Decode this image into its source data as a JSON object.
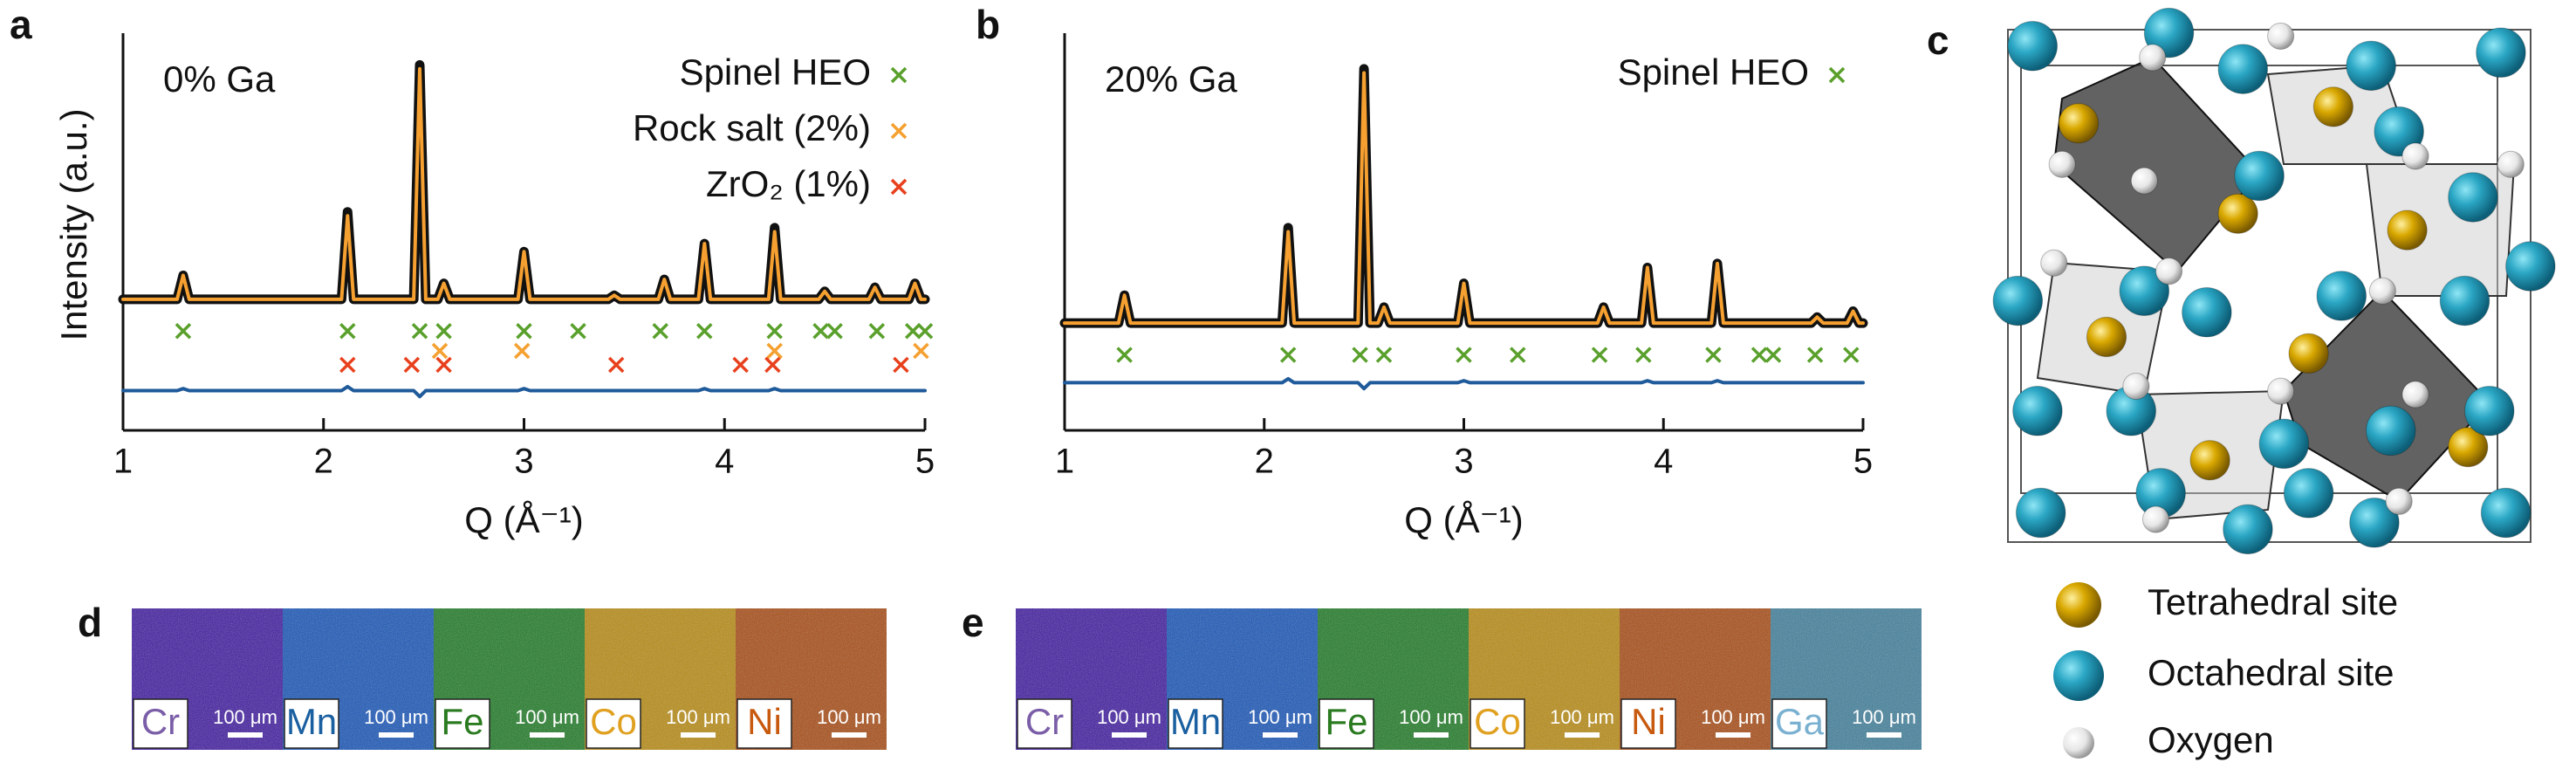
{
  "chart_data": [
    {
      "type": "line",
      "panel": "a",
      "annotation": "0% Ga",
      "xlabel": "Q (Å⁻¹)",
      "ylabel": "Intensity (a.u.)",
      "xlim": [
        1,
        5
      ],
      "xticks": [
        1,
        2,
        3,
        4,
        5
      ],
      "ylim": [
        0,
        100
      ],
      "legend": "upper right",
      "x": [
        1.0,
        1.27,
        1.3,
        1.33,
        2.09,
        2.12,
        2.15,
        2.45,
        2.48,
        2.51,
        2.57,
        2.6,
        2.63,
        2.97,
        3.0,
        3.03,
        3.42,
        3.45,
        3.48,
        3.67,
        3.7,
        3.73,
        3.87,
        3.9,
        3.93,
        4.22,
        4.25,
        4.28,
        4.47,
        4.5,
        4.53,
        4.72,
        4.75,
        4.78,
        4.92,
        4.95,
        4.98,
        5.0
      ],
      "series": [
        {
          "color": "#111111",
          "marker": "o",
          "values": [
            33,
            33,
            39,
            33,
            33,
            55,
            33,
            33,
            92,
            33,
            33,
            37,
            33,
            33,
            45,
            33,
            33,
            34,
            33,
            33,
            38,
            33,
            33,
            47,
            33,
            33,
            51,
            33,
            33,
            35,
            33,
            33,
            36,
            33,
            33,
            37,
            33,
            33
          ]
        },
        {
          "color": "#f5a030",
          "values": [
            33,
            33,
            39,
            33,
            33,
            54,
            33,
            33,
            91,
            33,
            33,
            37,
            33,
            33,
            45,
            33,
            33,
            34,
            33,
            33,
            38,
            33,
            33,
            47,
            33,
            33,
            50,
            33,
            33,
            35,
            33,
            33,
            36,
            33,
            33,
            37,
            33,
            33
          ]
        },
        {
          "color": "#1f5a9a",
          "values": [
            10,
            10,
            10.5,
            10,
            10,
            11,
            10,
            10,
            8.5,
            10,
            10,
            10,
            10,
            10,
            10.5,
            10,
            10,
            10,
            10,
            10,
            10,
            10,
            10,
            10.5,
            10,
            10,
            10.5,
            10,
            10,
            10,
            10,
            10,
            10,
            10,
            10,
            10,
            10,
            10
          ]
        },
        {
          "name": "Spinel HEO",
          "color": "#5aa02c",
          "marker": "x",
          "x": [
            1.3,
            2.12,
            2.48,
            2.6,
            3.0,
            3.27,
            3.68,
            3.9,
            4.25,
            4.48,
            4.55,
            4.76,
            4.94,
            5.0
          ],
          "values": [
            25,
            25,
            25,
            25,
            25,
            25,
            25,
            25,
            25,
            25,
            25,
            25,
            25,
            25
          ]
        },
        {
          "name": "Rock salt (2%)",
          "color": "#f5a030",
          "marker": "x",
          "x": [
            2.58,
            2.99,
            4.25,
            4.98
          ],
          "values": [
            20,
            20,
            20,
            20
          ]
        },
        {
          "name": "ZrO₂ (1%)",
          "color": "#e8401c",
          "marker": "x",
          "x": [
            2.12,
            2.44,
            2.6,
            3.46,
            4.08,
            4.24,
            4.88
          ],
          "values": [
            16.5,
            16.5,
            16.5,
            16.5,
            16.5,
            16.5,
            16.5
          ]
        }
      ]
    },
    {
      "type": "line",
      "panel": "b",
      "annotation": "20% Ga",
      "xlabel": "Q (Å⁻¹)",
      "xlim": [
        1,
        5
      ],
      "xticks": [
        1,
        2,
        3,
        4,
        5
      ],
      "ylim": [
        0,
        100
      ],
      "legend": "upper right",
      "x": [
        1.0,
        1.27,
        1.3,
        1.33,
        2.09,
        2.12,
        2.15,
        2.47,
        2.5,
        2.53,
        2.57,
        2.6,
        2.63,
        2.97,
        3.0,
        3.03,
        3.67,
        3.7,
        3.73,
        3.89,
        3.92,
        3.95,
        4.24,
        4.27,
        4.3,
        4.74,
        4.77,
        4.8,
        4.92,
        4.95,
        4.98,
        5.0
      ],
      "series": [
        {
          "color": "#111111",
          "marker": "o",
          "values": [
            27,
            27,
            34,
            27,
            27,
            51,
            27,
            27,
            91,
            27,
            27,
            31,
            27,
            27,
            37,
            27,
            27,
            31,
            27,
            27,
            41,
            27,
            27,
            42,
            27,
            27,
            28.5,
            27,
            27,
            30,
            27,
            27
          ]
        },
        {
          "color": "#f5a030",
          "values": [
            27,
            27,
            34,
            27,
            27,
            50,
            27,
            27,
            90,
            27,
            27,
            31,
            27,
            27,
            37,
            27,
            27,
            31,
            27,
            27,
            41,
            27,
            27,
            42,
            27,
            27,
            28.5,
            27,
            27,
            30,
            27,
            27
          ]
        },
        {
          "color": "#1f5a9a",
          "values": [
            12,
            12,
            12,
            12,
            12,
            13,
            12,
            12,
            10.5,
            12,
            12,
            12,
            12,
            12,
            12.5,
            12,
            12,
            12,
            12,
            12,
            12.5,
            12,
            12,
            12.5,
            12,
            12,
            12,
            12,
            12,
            12,
            12,
            12
          ]
        },
        {
          "name": "Spinel HEO",
          "color": "#5aa02c",
          "marker": "x",
          "x": [
            1.3,
            2.12,
            2.48,
            2.6,
            3.0,
            3.27,
            3.68,
            3.9,
            4.25,
            4.48,
            4.55,
            4.76,
            4.94
          ],
          "values": [
            19,
            19,
            19,
            19,
            19,
            19,
            19,
            19,
            19,
            19,
            19,
            19,
            19
          ]
        }
      ]
    }
  ],
  "structure": {
    "panel": "c",
    "legend": [
      "Tetrahedral site",
      "Octahedral site",
      "Oxygen"
    ]
  },
  "maps": [
    {
      "panel": "d",
      "tiles": [
        {
          "element": "Cr",
          "scale": "100 μm",
          "color": "#3f1aa0",
          "label_color": "#7b5ea8"
        },
        {
          "element": "Mn",
          "scale": "100 μm",
          "color": "#1654b8",
          "label_color": "#1a5fa0"
        },
        {
          "element": "Fe",
          "scale": "100 μm",
          "color": "#1d7a24",
          "label_color": "#2a7a20"
        },
        {
          "element": "Co",
          "scale": "100 μm",
          "color": "#b88a10",
          "label_color": "#e0a020"
        },
        {
          "element": "Ni",
          "scale": "100 μm",
          "color": "#a84a12",
          "label_color": "#c85a10"
        }
      ]
    },
    {
      "panel": "e",
      "tiles": [
        {
          "element": "Cr",
          "scale": "100 μm",
          "color": "#3f1aa0",
          "label_color": "#7b5ea8"
        },
        {
          "element": "Mn",
          "scale": "100 μm",
          "color": "#1654b8",
          "label_color": "#1a5fa0"
        },
        {
          "element": "Fe",
          "scale": "100 μm",
          "color": "#1d7a24",
          "label_color": "#2a7a20"
        },
        {
          "element": "Co",
          "scale": "100 μm",
          "color": "#b88a10",
          "label_color": "#e0a020"
        },
        {
          "element": "Ni",
          "scale": "100 μm",
          "color": "#a84a12",
          "label_color": "#c85a10"
        },
        {
          "element": "Ga",
          "scale": "100 μm",
          "color": "#3e7e9a",
          "label_color": "#7ab0d0"
        }
      ]
    }
  ]
}
